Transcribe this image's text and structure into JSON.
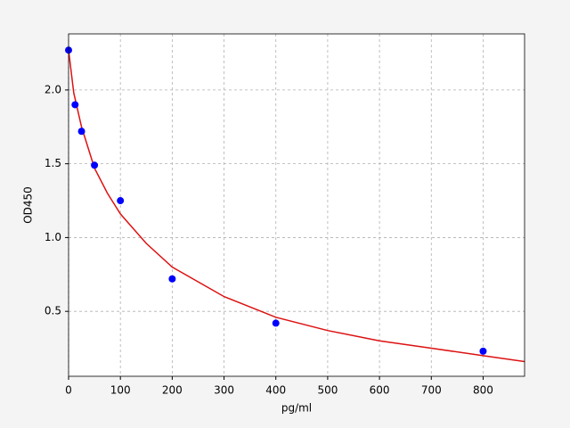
{
  "chart_data": {
    "type": "scatter",
    "x_label": "pg/ml",
    "y_label": "OD450",
    "x": [
      0,
      12.5,
      25,
      50,
      100,
      200,
      400,
      800
    ],
    "values": [
      2.27,
      1.9,
      1.72,
      1.49,
      1.25,
      0.72,
      0.42,
      0.23
    ],
    "color": "#0000ff",
    "fit": {
      "type": "line",
      "color": "#dd1111",
      "x": [
        0,
        10,
        25,
        50,
        75,
        100,
        150,
        200,
        300,
        400,
        500,
        600,
        700,
        800,
        880
      ],
      "values": [
        2.27,
        1.98,
        1.75,
        1.47,
        1.3,
        1.16,
        0.96,
        0.8,
        0.6,
        0.46,
        0.37,
        0.3,
        0.25,
        0.2,
        0.16
      ]
    },
    "xlim": [
      0,
      880
    ],
    "ylim": [
      0.06,
      2.38
    ],
    "xticks": [
      0,
      100,
      200,
      300,
      400,
      500,
      600,
      700,
      800
    ],
    "yticks": [
      0.5,
      {
        "value": 1.0,
        "label": "1.0"
      },
      1.5,
      {
        "value": 2.0,
        "label": "2.0"
      }
    ],
    "grid": true
  }
}
